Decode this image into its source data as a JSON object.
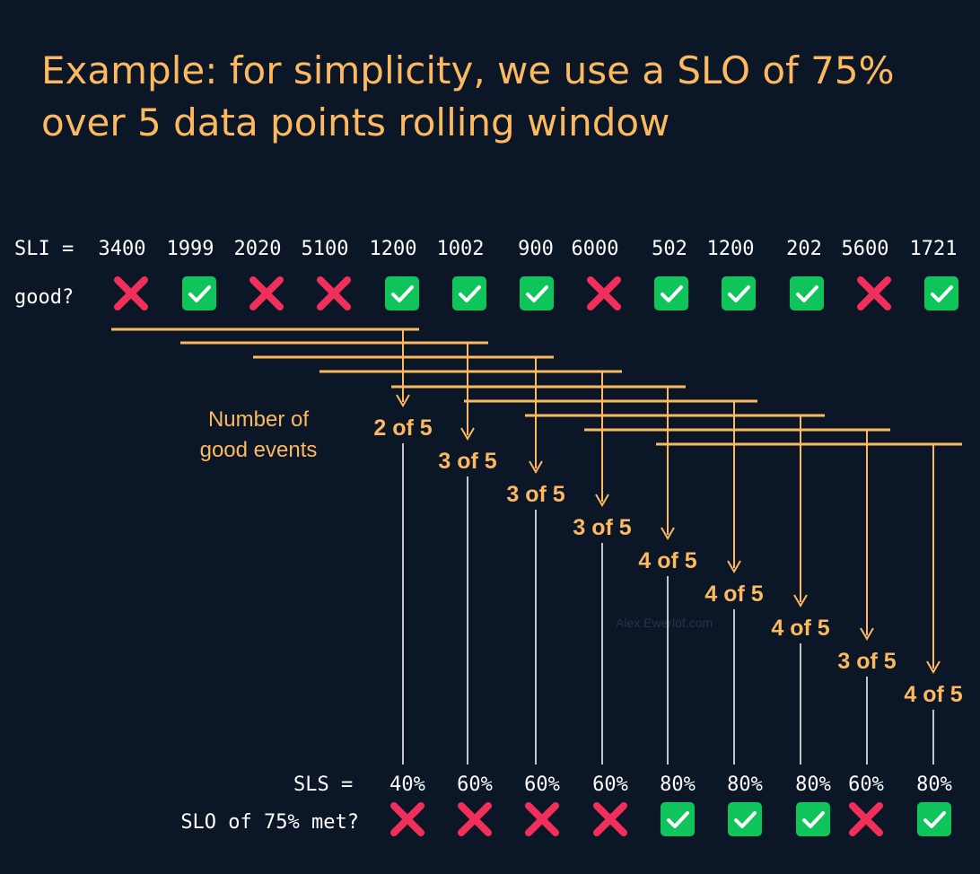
{
  "title": "Example: for simplicity, we use a SLO of 75% over 5 data points rolling window",
  "sli_prefix": "SLI =",
  "good_label": "good?",
  "sli": [
    {
      "value": "3400",
      "good": false
    },
    {
      "value": "1999",
      "good": true
    },
    {
      "value": "2020",
      "good": false
    },
    {
      "value": "5100",
      "good": false
    },
    {
      "value": "1200",
      "good": true
    },
    {
      "value": "1002",
      "good": true
    },
    {
      "value": "900",
      "good": true
    },
    {
      "value": "6000",
      "good": false
    },
    {
      "value": "502",
      "good": true
    },
    {
      "value": "1200",
      "good": true
    },
    {
      "value": "202",
      "good": true
    },
    {
      "value": "5600",
      "good": false
    },
    {
      "value": "1721",
      "good": true
    }
  ],
  "annotation": [
    "Number of",
    "good events"
  ],
  "windows": [
    {
      "count": "2 of 5",
      "sls": "40%",
      "met": false
    },
    {
      "count": "3 of 5",
      "sls": "60%",
      "met": false
    },
    {
      "count": "3 of 5",
      "sls": "60%",
      "met": false
    },
    {
      "count": "3 of 5",
      "sls": "60%",
      "met": false
    },
    {
      "count": "4 of 5",
      "sls": "80%",
      "met": true
    },
    {
      "count": "4 of 5",
      "sls": "80%",
      "met": true
    },
    {
      "count": "4 of 5",
      "sls": "80%",
      "met": true
    },
    {
      "count": "3 of 5",
      "sls": "60%",
      "met": false
    },
    {
      "count": "4 of 5",
      "sls": "80%",
      "met": true
    }
  ],
  "sls_prefix": "SLS =",
  "met_label": "SLO of 75% met?",
  "watermark": "Alex Ewerlöf.com",
  "colors": {
    "background": "#0b1627",
    "accent": "#fdb960",
    "good": "#10c45c",
    "bad": "#f0305a",
    "text": "#ffffff"
  },
  "icons": {
    "good": "check-icon",
    "bad": "cross-icon"
  }
}
